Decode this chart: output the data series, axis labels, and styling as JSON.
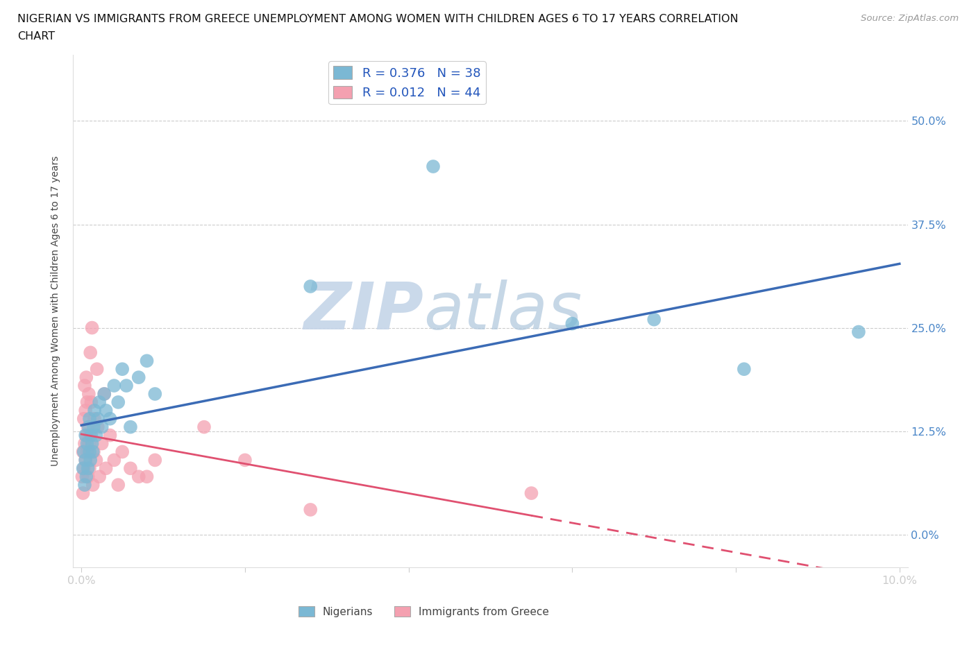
{
  "title_line1": "NIGERIAN VS IMMIGRANTS FROM GREECE UNEMPLOYMENT AMONG WOMEN WITH CHILDREN AGES 6 TO 17 YEARS CORRELATION",
  "title_line2": "CHART",
  "source": "Source: ZipAtlas.com",
  "ylabel": "Unemployment Among Women with Children Ages 6 to 17 years",
  "xlim": [
    -0.001,
    0.101
  ],
  "ylim": [
    -0.04,
    0.58
  ],
  "ytick_vals": [
    0.0,
    0.125,
    0.25,
    0.375,
    0.5
  ],
  "ytick_labels": [
    "0.0%",
    "12.5%",
    "25.0%",
    "37.5%",
    "50.0%"
  ],
  "xtick_vals": [
    0.0,
    0.02,
    0.04,
    0.06,
    0.08,
    0.1
  ],
  "xtick_labels": [
    "0.0%",
    "",
    "",
    "",
    "",
    "10.0%"
  ],
  "nigerians_R": 0.376,
  "nigerians_N": 38,
  "greece_R": 0.012,
  "greece_N": 44,
  "color_nigerian": "#7bb8d4",
  "color_greece": "#f4a0b0",
  "color_nigerian_line": "#3b6bb5",
  "color_greece_line": "#e05070",
  "background_color": "#ffffff",
  "grid_color": "#cccccc",
  "watermark_zip": "ZIP",
  "watermark_atlas": "atlas",
  "nigerian_x": [
    0.0002,
    0.0003,
    0.0004,
    0.0005,
    0.0005,
    0.0006,
    0.0007,
    0.0008,
    0.0009,
    0.001,
    0.001,
    0.0011,
    0.0012,
    0.0013,
    0.0014,
    0.0015,
    0.0016,
    0.0018,
    0.002,
    0.0022,
    0.0025,
    0.0028,
    0.003,
    0.0035,
    0.004,
    0.0045,
    0.005,
    0.0055,
    0.006,
    0.007,
    0.008,
    0.009,
    0.028,
    0.043,
    0.06,
    0.07,
    0.081,
    0.095
  ],
  "nigerian_y": [
    0.08,
    0.1,
    0.06,
    0.09,
    0.12,
    0.07,
    0.11,
    0.08,
    0.13,
    0.1,
    0.14,
    0.09,
    0.12,
    0.11,
    0.1,
    0.13,
    0.15,
    0.12,
    0.14,
    0.16,
    0.13,
    0.17,
    0.15,
    0.14,
    0.18,
    0.16,
    0.2,
    0.18,
    0.13,
    0.19,
    0.21,
    0.17,
    0.3,
    0.445,
    0.255,
    0.26,
    0.2,
    0.245
  ],
  "greece_x": [
    0.0001,
    0.0002,
    0.0002,
    0.0003,
    0.0003,
    0.0004,
    0.0004,
    0.0005,
    0.0005,
    0.0006,
    0.0006,
    0.0007,
    0.0007,
    0.0008,
    0.0008,
    0.0009,
    0.0009,
    0.001,
    0.001,
    0.0011,
    0.0012,
    0.0013,
    0.0014,
    0.0015,
    0.0016,
    0.0018,
    0.0019,
    0.002,
    0.0022,
    0.0025,
    0.0028,
    0.003,
    0.0035,
    0.004,
    0.0045,
    0.005,
    0.006,
    0.007,
    0.008,
    0.009,
    0.015,
    0.02,
    0.028,
    0.055
  ],
  "greece_y": [
    0.07,
    0.05,
    0.1,
    0.08,
    0.14,
    0.11,
    0.18,
    0.09,
    0.15,
    0.12,
    0.19,
    0.1,
    0.16,
    0.13,
    0.07,
    0.11,
    0.17,
    0.08,
    0.12,
    0.22,
    0.16,
    0.25,
    0.06,
    0.1,
    0.14,
    0.09,
    0.2,
    0.13,
    0.07,
    0.11,
    0.17,
    0.08,
    0.12,
    0.09,
    0.06,
    0.1,
    0.08,
    0.07,
    0.07,
    0.09,
    0.13,
    0.09,
    0.03,
    0.05
  ]
}
